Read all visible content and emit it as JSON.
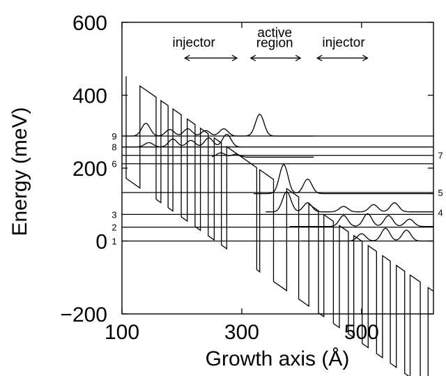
{
  "chart_data": {
    "type": "line",
    "xlabel": "Growth axis (Å)",
    "ylabel": "Energy (meV)",
    "xlim": [
      100,
      620
    ],
    "ylim": [
      -200,
      600
    ],
    "x_ticks": [
      100,
      300,
      500
    ],
    "y_ticks": [
      -200,
      0,
      200,
      400,
      600
    ],
    "x_tick_labels": [
      "100",
      "300",
      "500"
    ],
    "y_tick_labels": [
      "−200",
      "0",
      "200",
      "400",
      "600"
    ],
    "grid": false,
    "annotations": [
      {
        "text": "injector",
        "x": 220,
        "y": 533
      },
      {
        "text": "active",
        "x": 355,
        "y": 560
      },
      {
        "text": "region",
        "x": 355,
        "y": 532
      },
      {
        "text": "injector",
        "x": 470,
        "y": 533
      }
    ],
    "annotation_arrows": [
      {
        "x": [
          205,
          292
        ],
        "y": 502
      },
      {
        "x": [
          315,
          398
        ],
        "y": 502
      },
      {
        "x": [
          426,
          510
        ],
        "y": 502
      }
    ],
    "level_labels": [
      {
        "text": "9",
        "side": "left",
        "energy": 288
      },
      {
        "text": "8",
        "side": "left",
        "energy": 258
      },
      {
        "text": "6",
        "side": "left",
        "energy": 212
      },
      {
        "text": "3",
        "side": "left",
        "energy": 73
      },
      {
        "text": "2",
        "side": "left",
        "energy": 38
      },
      {
        "text": "1",
        "side": "left",
        "energy": 0
      },
      {
        "text": "7",
        "side": "right",
        "energy": 235
      },
      {
        "text": "5",
        "side": "right",
        "energy": 133
      },
      {
        "text": "4",
        "side": "right",
        "energy": 78
      }
    ],
    "band_edge": {
      "wells": [
        [
          107,
          130
        ],
        [
          157,
          165
        ],
        [
          177,
          185
        ],
        [
          199,
          209
        ],
        [
          222,
          231
        ],
        [
          244,
          254
        ],
        [
          266,
          275
        ],
        [
          325,
          330
        ],
        [
          353,
          375
        ],
        [
          395,
          412
        ],
        [
          428,
          437
        ],
        [
          453,
          463
        ],
        [
          478,
          487
        ],
        [
          501,
          511
        ],
        [
          525,
          535
        ],
        [
          548,
          558
        ],
        [
          572,
          581
        ],
        [
          598,
          611
        ]
      ],
      "field_slope_meV_per_A": -1.15,
      "barrier_offset_meV": 280,
      "reference_energy_meV": 460,
      "reference_x": 100
    },
    "levels": [
      {
        "id": "1",
        "energy": 0,
        "x_range": [
          100,
          620
        ]
      },
      {
        "id": "2",
        "energy": 38,
        "x_range": [
          100,
          620
        ]
      },
      {
        "id": "3",
        "energy": 73,
        "x_range": [
          100,
          620
        ]
      },
      {
        "id": "5",
        "energy": 133,
        "x_range": [
          100,
          620
        ]
      },
      {
        "id": "6",
        "energy": 212,
        "x_range": [
          100,
          620
        ]
      },
      {
        "id": "7",
        "energy": 235,
        "x_range": [
          100,
          620
        ]
      },
      {
        "id": "8",
        "energy": 258,
        "x_range": [
          100,
          620
        ]
      },
      {
        "id": "9",
        "energy": 288,
        "x_range": [
          100,
          620
        ]
      }
    ],
    "wavefunctions": [
      {
        "baseline": 288,
        "x_range": [
          100,
          300
        ],
        "peaks": [
          [
            140,
            35
          ],
          [
            180,
            18
          ],
          [
            210,
            20
          ],
          [
            240,
            15
          ],
          [
            270,
            20
          ]
        ]
      },
      {
        "baseline": 258,
        "x_range": [
          100,
          300
        ],
        "peaks": [
          [
            145,
            12
          ],
          [
            185,
            22
          ],
          [
            215,
            18
          ],
          [
            245,
            25
          ],
          [
            275,
            35
          ]
        ]
      },
      {
        "baseline": 230,
        "x_range": [
          250,
          420
        ],
        "peaks": [
          [
            265,
            12
          ],
          [
            290,
            8
          ]
        ]
      },
      {
        "baseline": 288,
        "x_range": [
          300,
          420
        ],
        "peaks": [
          [
            330,
            60
          ]
        ]
      },
      {
        "baseline": 130,
        "x_range": [
          320,
          620
        ],
        "peaks": [
          [
            370,
            80
          ],
          [
            410,
            40
          ]
        ]
      },
      {
        "baseline": 80,
        "x_range": [
          340,
          620
        ],
        "peaks": [
          [
            375,
            55
          ],
          [
            410,
            25
          ],
          [
            470,
            15
          ],
          [
            520,
            20
          ],
          [
            555,
            25
          ]
        ]
      },
      {
        "baseline": 40,
        "x_range": [
          380,
          620
        ],
        "peaks": [
          [
            470,
            30
          ],
          [
            510,
            35
          ],
          [
            545,
            30
          ],
          [
            580,
            20
          ]
        ]
      },
      {
        "baseline": 0,
        "x_range": [
          400,
          620
        ],
        "peaks": [
          [
            500,
            20
          ],
          [
            540,
            35
          ],
          [
            575,
            30
          ]
        ]
      }
    ]
  }
}
